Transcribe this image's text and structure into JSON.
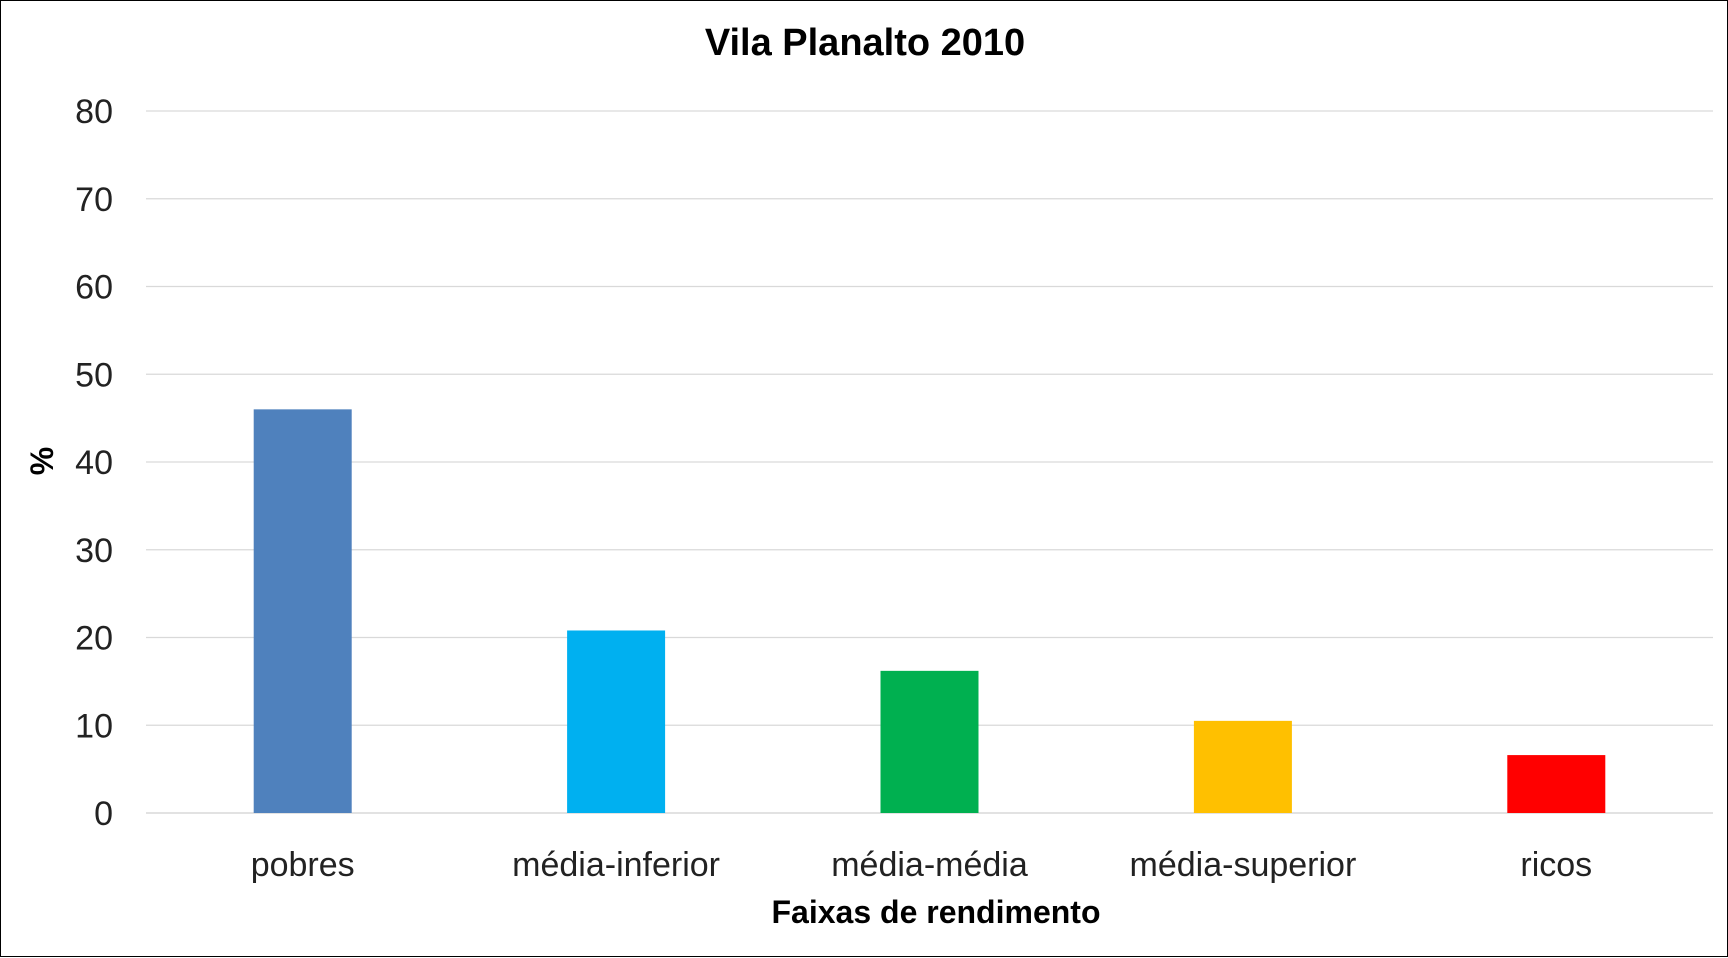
{
  "chart_data": {
    "type": "bar",
    "title": "Vila Planalto 2010",
    "xlabel": "Faixas de rendimento",
    "ylabel": "%",
    "categories": [
      "pobres",
      "média-inferior",
      "média-média",
      "média-superior",
      "ricos"
    ],
    "values": [
      46,
      20.8,
      16.2,
      10.5,
      6.6
    ],
    "colors": [
      "#4F81BD",
      "#00B0F0",
      "#00B050",
      "#FFC000",
      "#FF0000"
    ],
    "ylim": [
      0,
      80
    ],
    "yticks": [
      "0",
      "10",
      "20",
      "30",
      "40",
      "50",
      "60",
      "70",
      "80"
    ],
    "grid": true,
    "legend": "none"
  }
}
